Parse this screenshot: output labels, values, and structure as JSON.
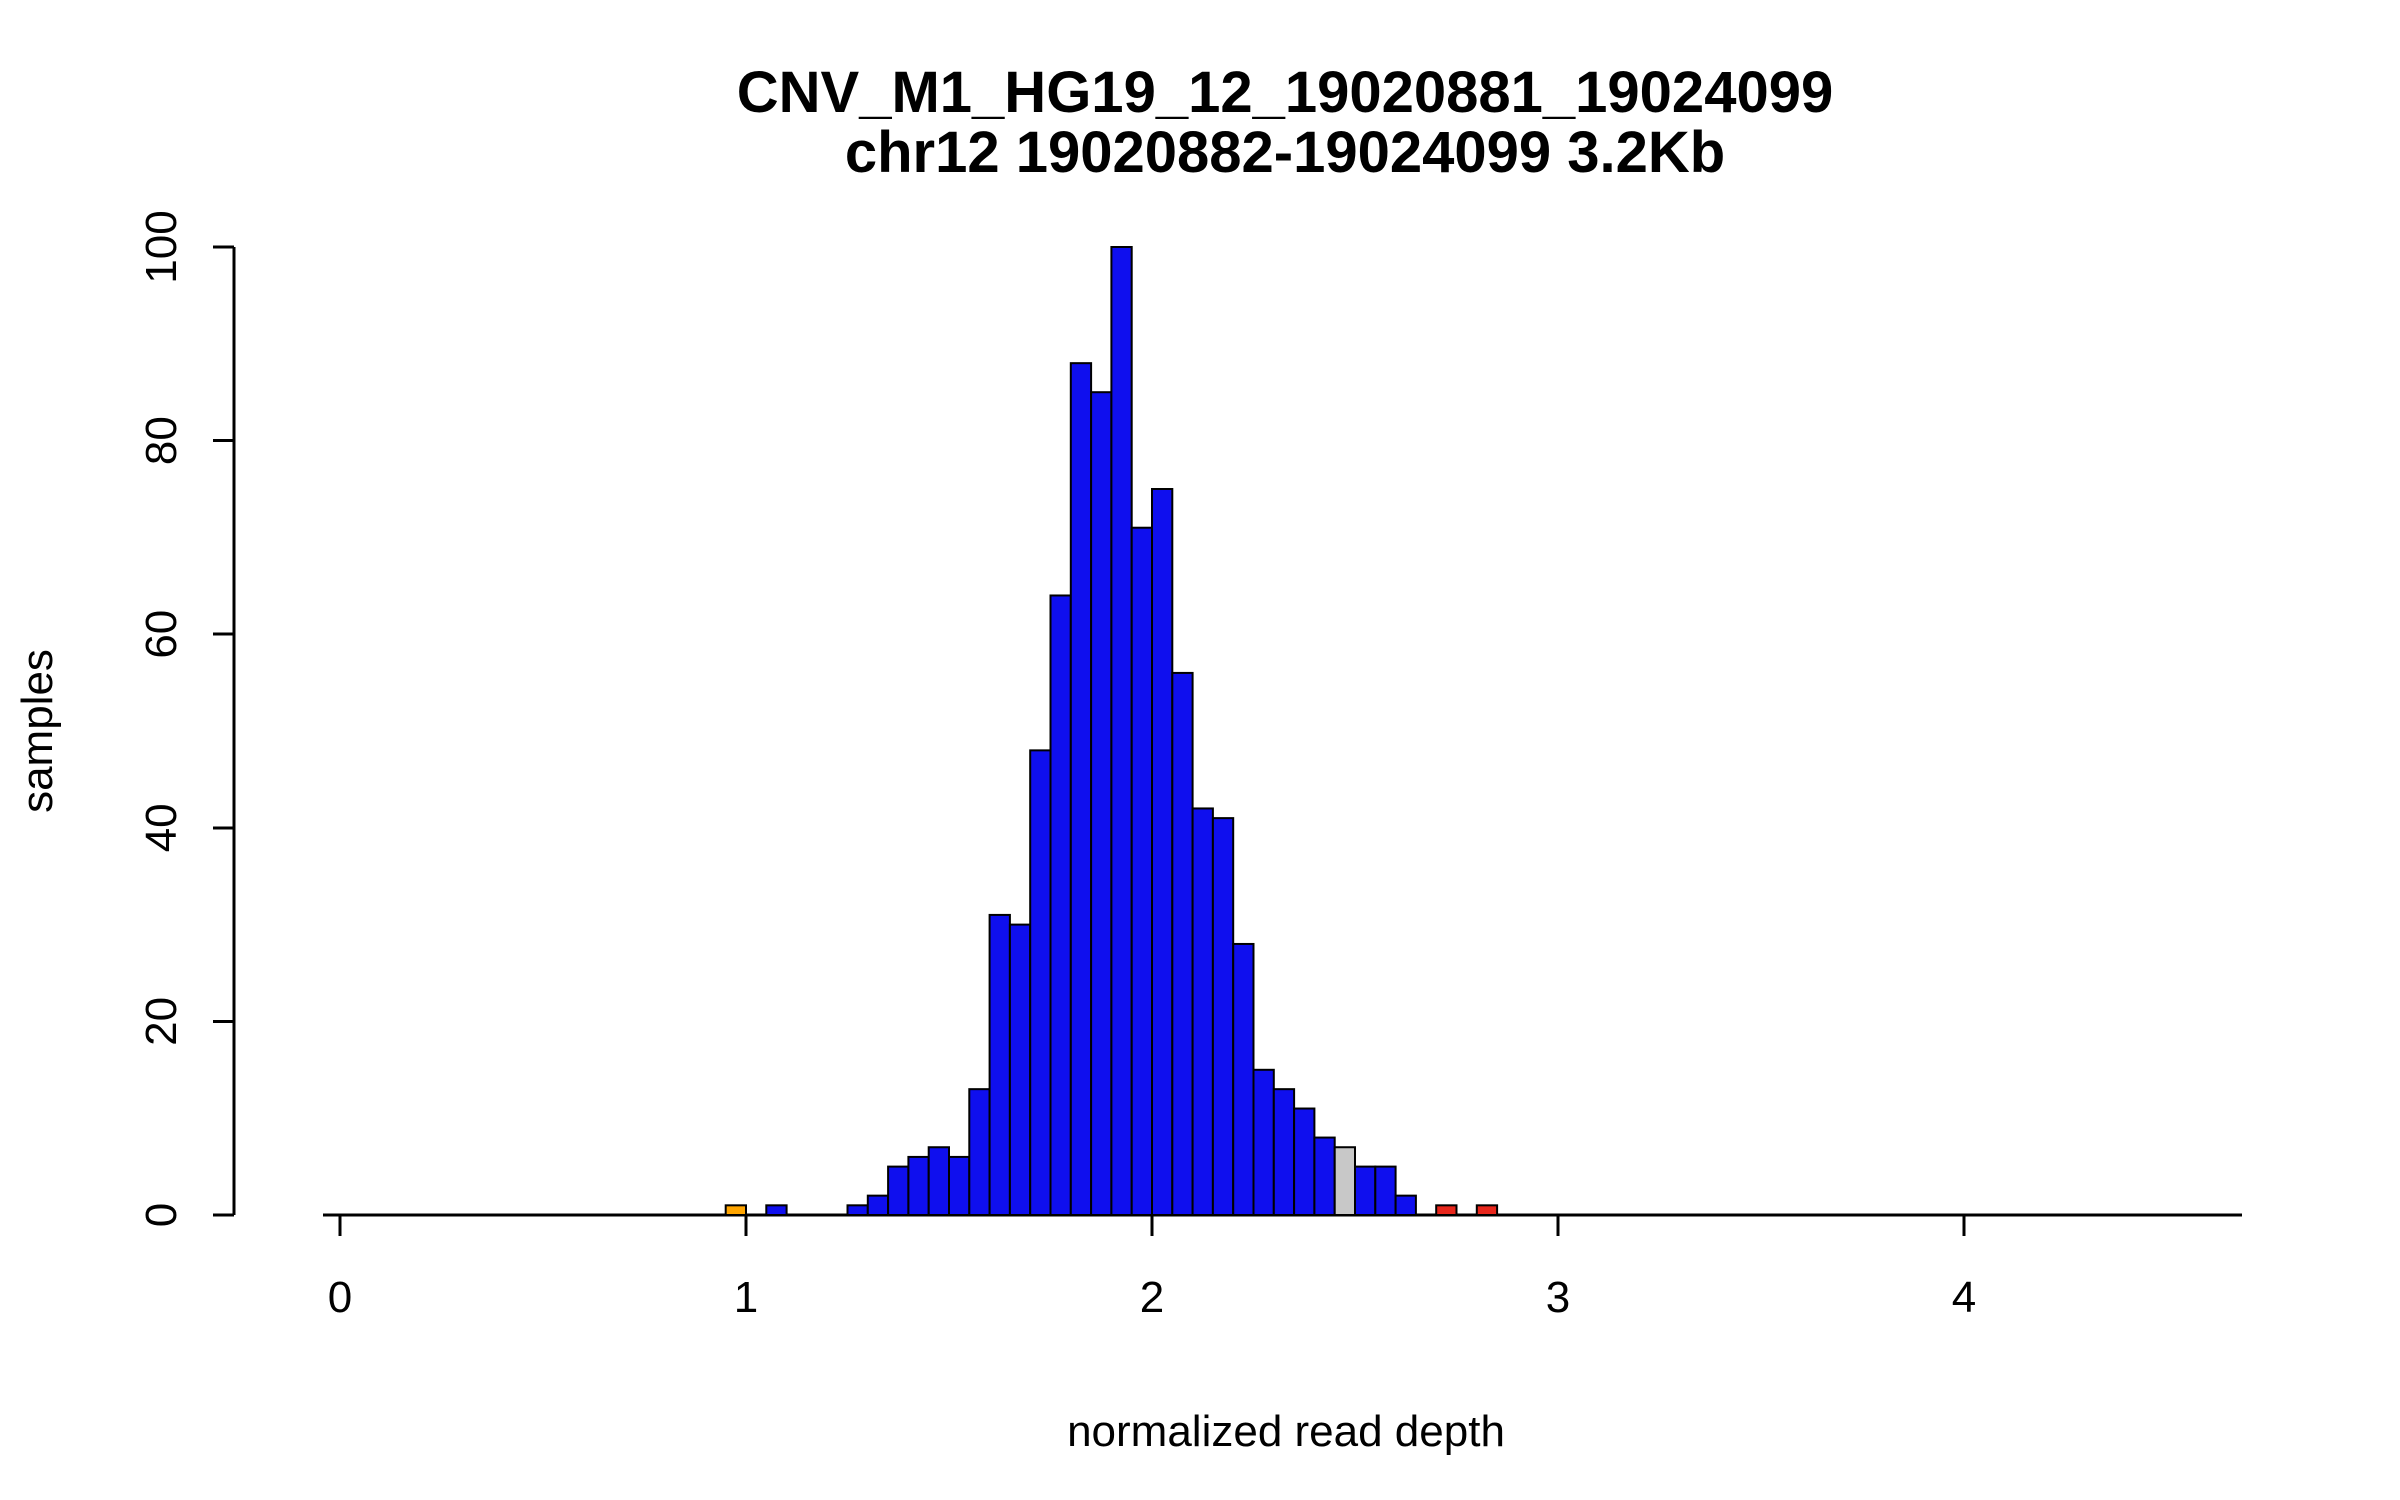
{
  "figure": {
    "title": "CNV_M1_HG19_12_19020881_19024099",
    "subtitle": "chr12 19020882-19024099 3.2Kb",
    "xlabel": "normalized read depth",
    "ylabel": "samples"
  },
  "chart_data": {
    "type": "bar",
    "title": "CNV_M1_HG19_12_19020881_19024099",
    "subtitle": "chr12 19020882-19024099 3.2Kb",
    "xlabel": "normalized read depth",
    "ylabel": "samples",
    "bin_width": 0.05,
    "xlim": [
      -0.04,
      4.68
    ],
    "ylim": [
      0,
      100
    ],
    "x_ticks": [
      0,
      1,
      2,
      3,
      4
    ],
    "y_ticks": [
      0,
      20,
      40,
      60,
      80,
      100
    ],
    "grid": false,
    "legend": "none",
    "colors": {
      "blue": "#0f0fee",
      "orange": "#ffa500",
      "red": "#e8271c",
      "gray": "#c8c8c8",
      "axis": "#000000",
      "bar_border": "#000000"
    },
    "bars": [
      {
        "x": 0.95,
        "count": 1,
        "color": "orange"
      },
      {
        "x": 1.05,
        "count": 1,
        "color": "blue"
      },
      {
        "x": 1.25,
        "count": 1,
        "color": "blue"
      },
      {
        "x": 1.3,
        "count": 2,
        "color": "blue"
      },
      {
        "x": 1.35,
        "count": 5,
        "color": "blue"
      },
      {
        "x": 1.4,
        "count": 6,
        "color": "blue"
      },
      {
        "x": 1.45,
        "count": 7,
        "color": "blue"
      },
      {
        "x": 1.5,
        "count": 6,
        "color": "blue"
      },
      {
        "x": 1.55,
        "count": 13,
        "color": "blue"
      },
      {
        "x": 1.6,
        "count": 31,
        "color": "blue"
      },
      {
        "x": 1.65,
        "count": 30,
        "color": "blue"
      },
      {
        "x": 1.7,
        "count": 48,
        "color": "blue"
      },
      {
        "x": 1.75,
        "count": 64,
        "color": "blue"
      },
      {
        "x": 1.8,
        "count": 88,
        "color": "blue"
      },
      {
        "x": 1.85,
        "count": 85,
        "color": "blue"
      },
      {
        "x": 1.9,
        "count": 100,
        "color": "blue"
      },
      {
        "x": 1.95,
        "count": 71,
        "color": "blue"
      },
      {
        "x": 2.0,
        "count": 75,
        "color": "blue"
      },
      {
        "x": 2.05,
        "count": 56,
        "color": "blue"
      },
      {
        "x": 2.1,
        "count": 42,
        "color": "blue"
      },
      {
        "x": 2.15,
        "count": 41,
        "color": "blue"
      },
      {
        "x": 2.2,
        "count": 28,
        "color": "blue"
      },
      {
        "x": 2.25,
        "count": 15,
        "color": "blue"
      },
      {
        "x": 2.3,
        "count": 13,
        "color": "blue"
      },
      {
        "x": 2.35,
        "count": 11,
        "color": "blue"
      },
      {
        "x": 2.4,
        "count": 8,
        "color": "blue"
      },
      {
        "x": 2.45,
        "count": 7,
        "color": "gray"
      },
      {
        "x": 2.5,
        "count": 5,
        "color": "blue"
      },
      {
        "x": 2.55,
        "count": 5,
        "color": "blue"
      },
      {
        "x": 2.6,
        "count": 2,
        "color": "blue"
      },
      {
        "x": 2.7,
        "count": 1,
        "color": "red"
      },
      {
        "x": 2.8,
        "count": 1,
        "color": "red"
      }
    ]
  }
}
